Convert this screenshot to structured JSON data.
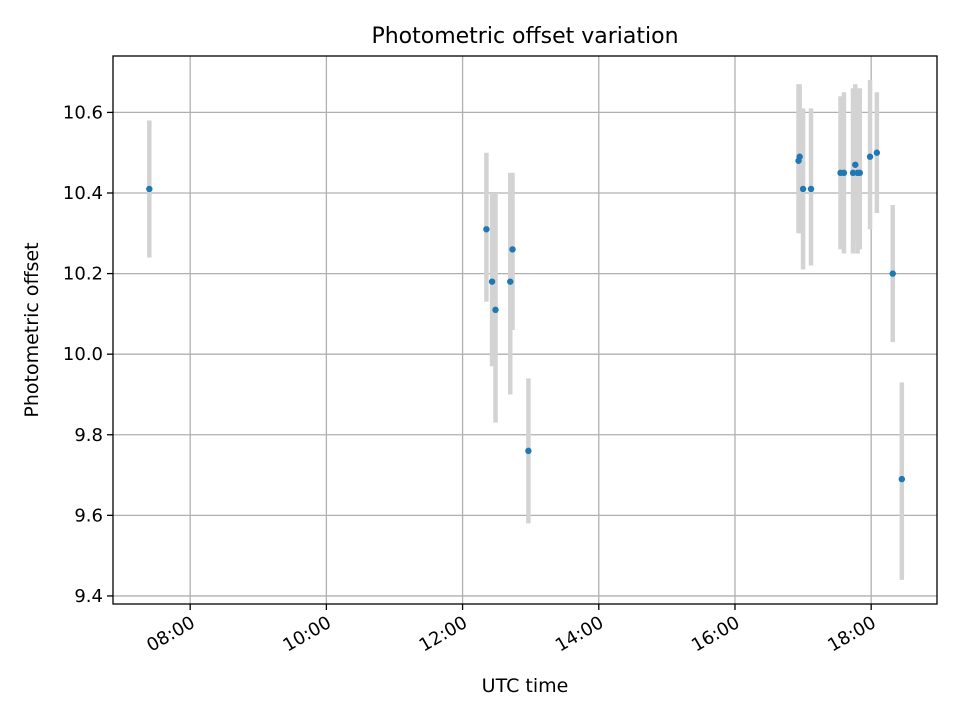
{
  "chart_data": {
    "type": "scatter",
    "title": "Photometric offset variation",
    "xlabel": "UTC time",
    "ylabel": "Photometric offset",
    "x_ticks": [
      "08:00",
      "10:00",
      "12:00",
      "14:00",
      "16:00",
      "18:00"
    ],
    "y_ticks": [
      "9.4",
      "9.6",
      "9.8",
      "10.0",
      "10.2",
      "10.4",
      "10.6"
    ],
    "xlim": [
      "06:52",
      "18:58"
    ],
    "ylim": [
      9.38,
      10.74
    ],
    "grid": true,
    "marker_color": "#1f77b4",
    "errorbar_color": "#d3d3d3",
    "points": [
      {
        "x": "07:24",
        "y": 10.41,
        "yerr_low": 10.24,
        "yerr_high": 10.58
      },
      {
        "x": "12:21",
        "y": 10.31,
        "yerr_low": 10.13,
        "yerr_high": 10.5
      },
      {
        "x": "12:26",
        "y": 10.18,
        "yerr_low": 9.97,
        "yerr_high": 10.4
      },
      {
        "x": "12:29",
        "y": 10.11,
        "yerr_low": 9.83,
        "yerr_high": 10.4
      },
      {
        "x": "12:42",
        "y": 10.18,
        "yerr_low": 9.9,
        "yerr_high": 10.45
      },
      {
        "x": "12:44",
        "y": 10.26,
        "yerr_low": 10.06,
        "yerr_high": 10.45
      },
      {
        "x": "12:58",
        "y": 9.76,
        "yerr_low": 9.58,
        "yerr_high": 9.94
      },
      {
        "x": "16:56",
        "y": 10.48,
        "yerr_low": 10.3,
        "yerr_high": 10.67
      },
      {
        "x": "16:57",
        "y": 10.49,
        "yerr_low": 10.3,
        "yerr_high": 10.67
      },
      {
        "x": "17:00",
        "y": 10.41,
        "yerr_low": 10.21,
        "yerr_high": 10.61
      },
      {
        "x": "17:07",
        "y": 10.41,
        "yerr_low": 10.22,
        "yerr_high": 10.61
      },
      {
        "x": "17:33",
        "y": 10.45,
        "yerr_low": 10.26,
        "yerr_high": 10.64
      },
      {
        "x": "17:36",
        "y": 10.45,
        "yerr_low": 10.25,
        "yerr_high": 10.65
      },
      {
        "x": "17:44",
        "y": 10.45,
        "yerr_low": 10.25,
        "yerr_high": 10.66
      },
      {
        "x": "17:46",
        "y": 10.47,
        "yerr_low": 10.28,
        "yerr_high": 10.67
      },
      {
        "x": "17:48",
        "y": 10.45,
        "yerr_low": 10.25,
        "yerr_high": 10.65
      },
      {
        "x": "17:50",
        "y": 10.45,
        "yerr_low": 10.26,
        "yerr_high": 10.66
      },
      {
        "x": "17:59",
        "y": 10.49,
        "yerr_low": 10.31,
        "yerr_high": 10.68
      },
      {
        "x": "18:05",
        "y": 10.5,
        "yerr_low": 10.35,
        "yerr_high": 10.65
      },
      {
        "x": "18:19",
        "y": 10.2,
        "yerr_low": 10.03,
        "yerr_high": 10.37
      },
      {
        "x": "18:27",
        "y": 9.69,
        "yerr_low": 9.44,
        "yerr_high": 9.93
      }
    ]
  }
}
